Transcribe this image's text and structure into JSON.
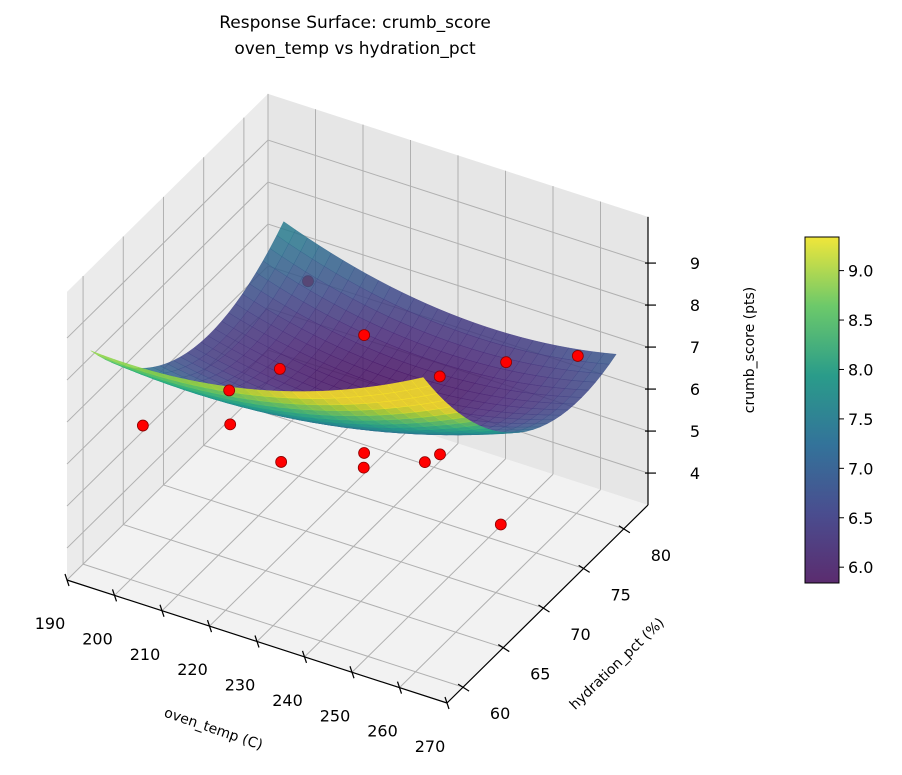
{
  "chart_data": {
    "type": "surface3d",
    "title": "Response Surface: crumb_score",
    "subtitle": "oven_temp vs hydration_pct",
    "xlabel": "oven_temp (C)",
    "ylabel": "hydration_pct (%)",
    "zlabel": "crumb_score (pts)",
    "xlim": [
      190,
      270
    ],
    "ylim": [
      58,
      83
    ],
    "zlim": [
      3.24,
      10.1
    ],
    "xticks": [
      190,
      200,
      210,
      220,
      230,
      240,
      250,
      260,
      270
    ],
    "yticks": [
      60,
      65,
      70,
      75,
      80
    ],
    "zticks": [
      4,
      5,
      6,
      7,
      8,
      9
    ],
    "grid": true,
    "surface": {
      "colormap": "viridis",
      "x_range": [
        195,
        265
      ],
      "y_range": [
        58,
        82
      ],
      "model": "quadratic fit",
      "coefficients": {
        "intercept": 6.0,
        "x_center": 228,
        "y_center": 75,
        "xx": 0.0005,
        "yy": 0.011,
        "xy": -0.0015
      }
    },
    "colorbar": {
      "range": [
        5.84,
        9.34
      ],
      "ticks": [
        "6.0",
        "6.5",
        "7.0",
        "7.5",
        "8.0",
        "8.5",
        "9.0"
      ]
    },
    "points": {
      "color": "#ff0000",
      "edge_color": "#8b0000",
      "values": [
        {
          "x": 203.5,
          "y": 80,
          "z": 6.7
        },
        {
          "x": 218.7,
          "y": 78,
          "z": 6.35
        },
        {
          "x": 214.5,
          "y": 70,
          "z": 6.9
        },
        {
          "x": 210.6,
          "y": 66,
          "z": 7.0
        },
        {
          "x": 239.7,
          "y": 75,
          "z": 6.7
        },
        {
          "x": 248.6,
          "y": 78,
          "z": 6.8
        },
        {
          "x": 260.3,
          "y": 80,
          "z": 7.0
        },
        {
          "x": 199.2,
          "y": 62,
          "z": 6.5
        },
        {
          "x": 214.2,
          "y": 64,
          "z": 6.7
        },
        {
          "x": 231.7,
          "y": 60,
          "z": 7.2
        },
        {
          "x": 240.7,
          "y": 65,
          "z": 6.8
        },
        {
          "x": 245.7,
          "y": 62,
          "z": 7.2
        },
        {
          "x": 251.8,
          "y": 66,
          "z": 6.8
        },
        {
          "x": 251.6,
          "y": 68,
          "z": 6.6
        },
        {
          "x": 264.4,
          "y": 68,
          "z": 5.4
        }
      ]
    }
  }
}
